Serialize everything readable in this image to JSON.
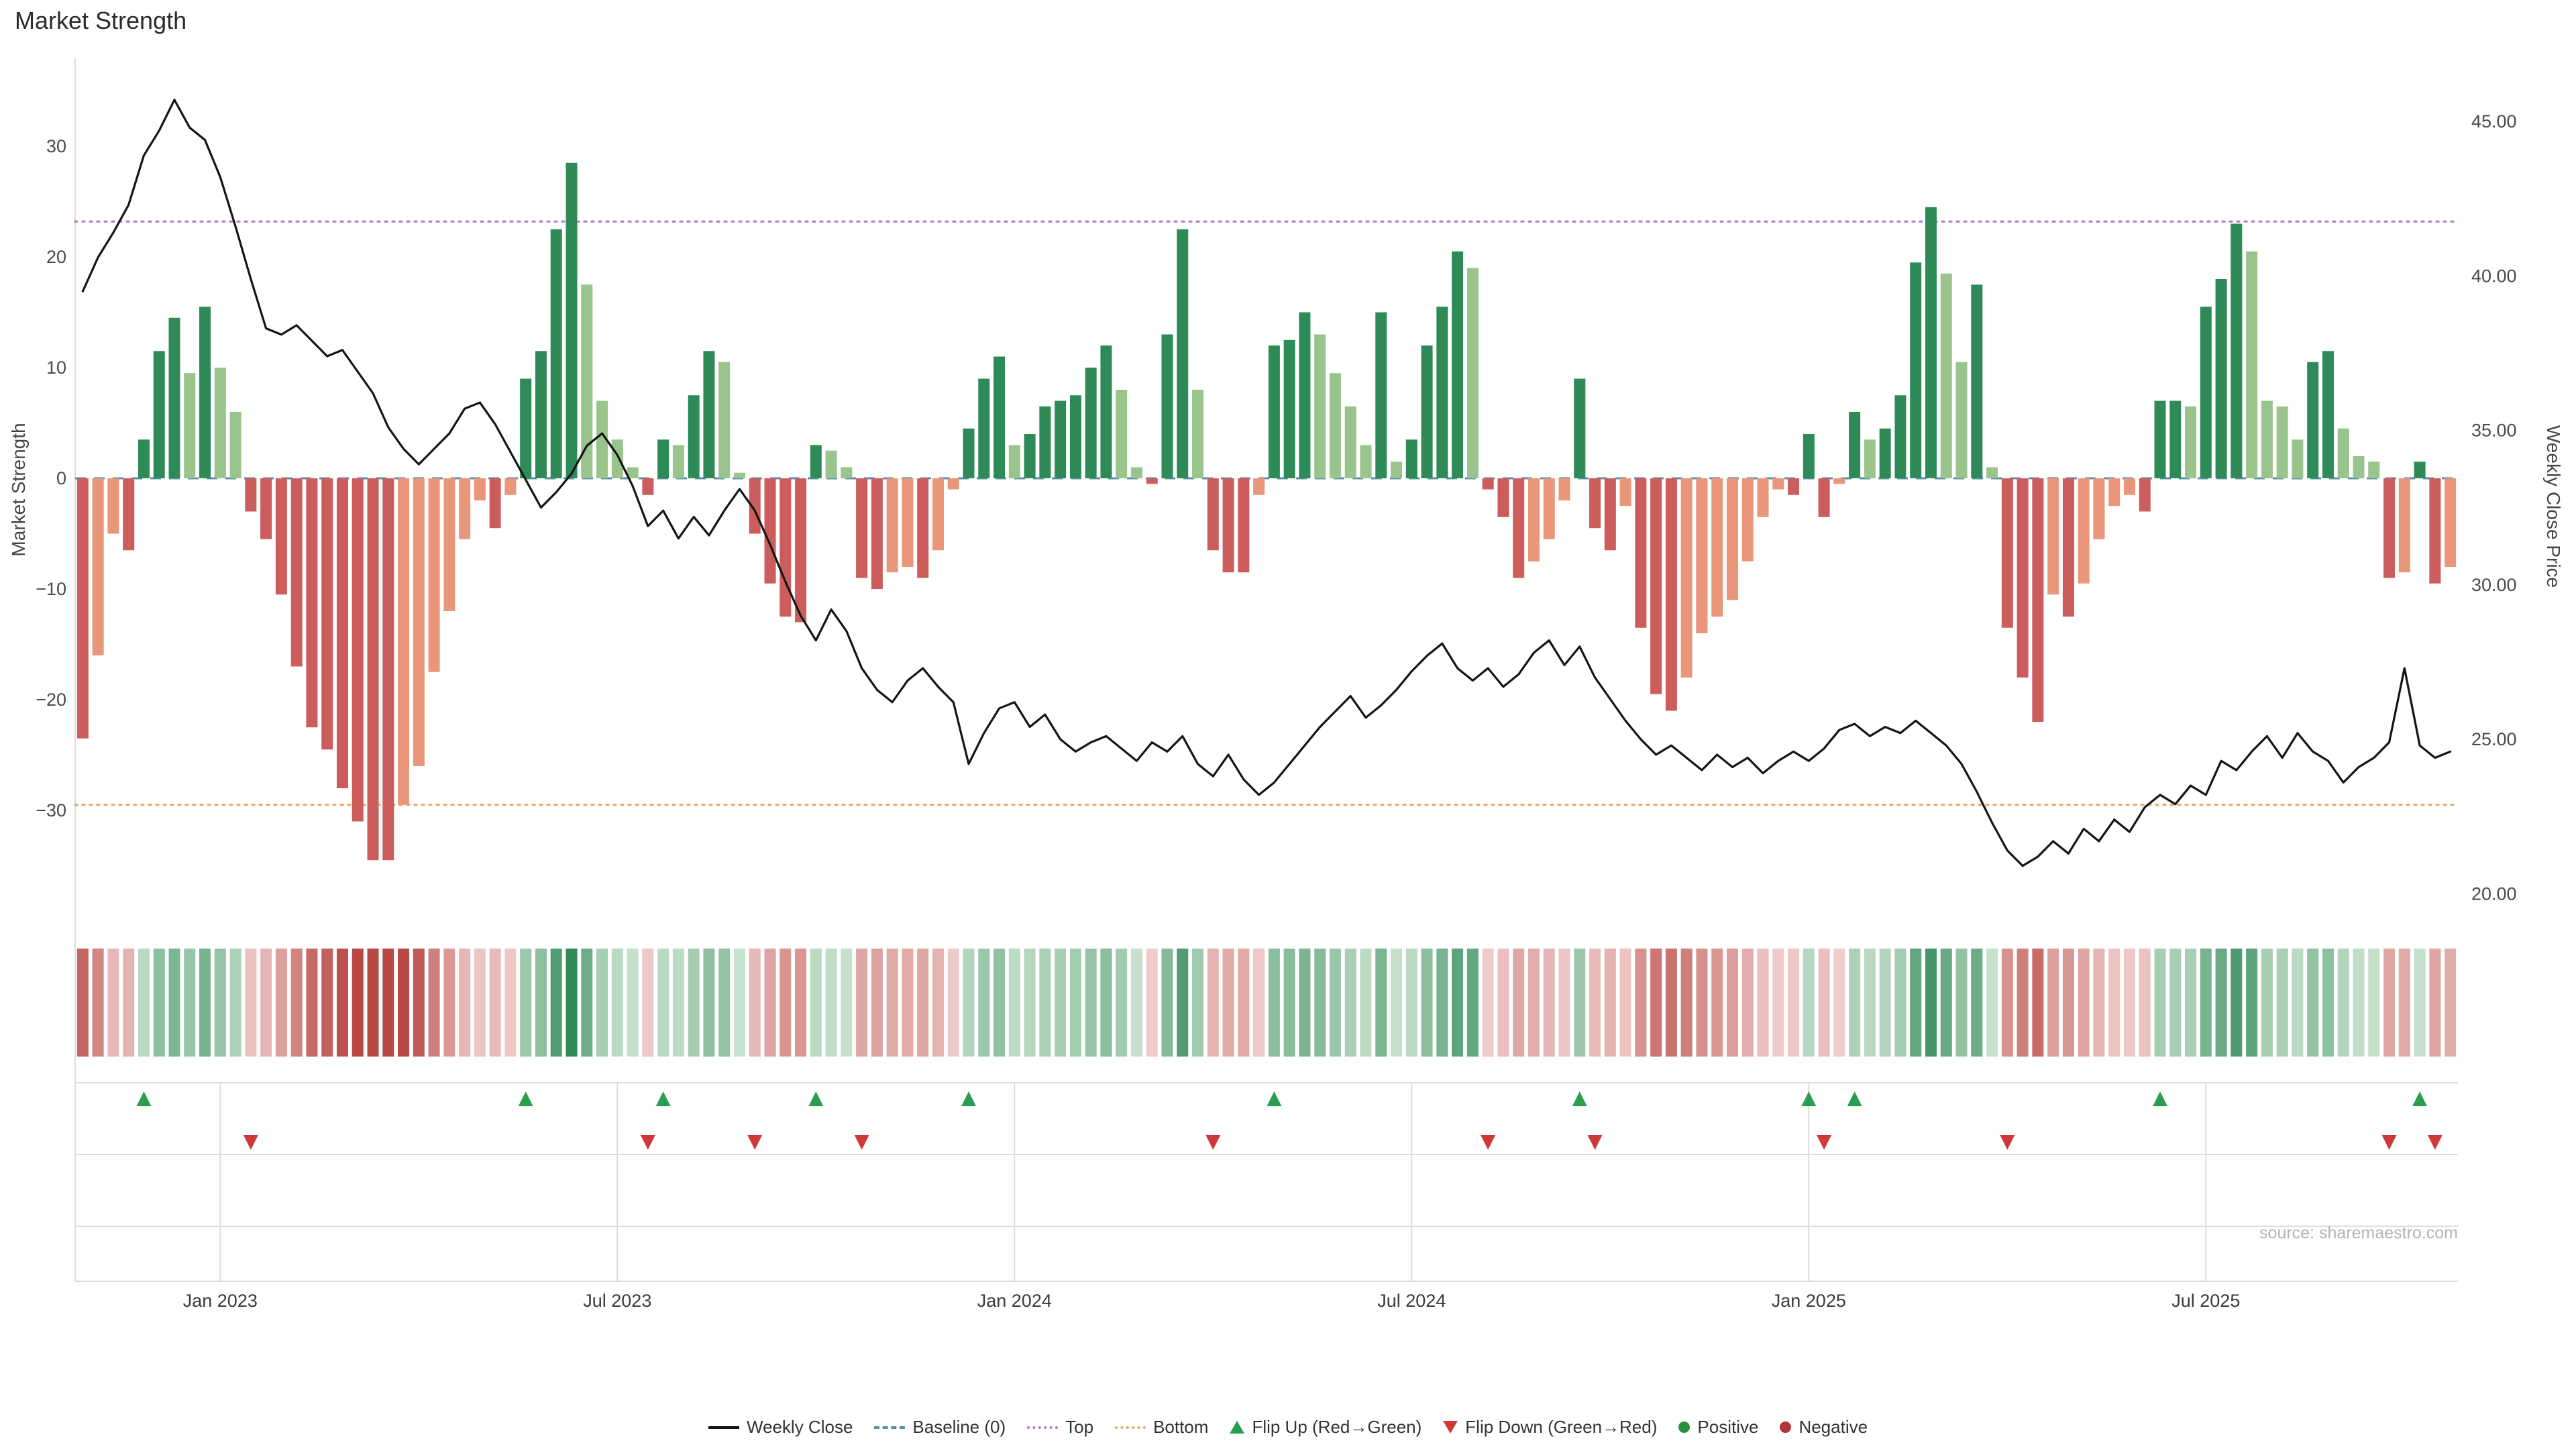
{
  "title": "Market Strength",
  "source": "source: sharemaestro.com",
  "colors": {
    "positive_dark": "#2e8b57",
    "positive_light": "#99c48c",
    "negative_dark": "#cd5c5c",
    "negative_light": "#e9967a",
    "close_line": "#141414",
    "baseline": "#5b8fa8",
    "top": "#b07cc6",
    "bottom": "#f4a460",
    "flip_up": "#2a9d4e",
    "flip_down": "#cf3838",
    "positive_dot": "#2f8f3f",
    "negative_dot": "#b23434"
  },
  "legend": {
    "weekly_close": "Weekly Close",
    "baseline": "Baseline (0)",
    "top": "Top",
    "bottom": "Bottom",
    "flip_up": "Flip Up (Red→Green)",
    "flip_down": "Flip Down (Green→Red)",
    "positive": "Positive",
    "negative": "Negative"
  },
  "chart_data": {
    "type": "combo",
    "title": "Market Strength",
    "ylabel_left": "Market Strength",
    "ylabel_right": "Weekly Close Price",
    "ylim_left": [
      -38,
      36
    ],
    "ylim_right": [
      20,
      45
    ],
    "left_ticks": [
      {
        "v": 30,
        "label": "30"
      },
      {
        "v": 20,
        "label": "20"
      },
      {
        "v": 10,
        "label": "10"
      },
      {
        "v": 0,
        "label": "0"
      },
      {
        "v": -10,
        "label": "−10"
      },
      {
        "v": -20,
        "label": "−20"
      },
      {
        "v": -30,
        "label": "−30"
      }
    ],
    "right_ticks": [
      {
        "v": 45,
        "label": "45.00"
      },
      {
        "v": 40,
        "label": "40.00"
      },
      {
        "v": 35,
        "label": "35.00"
      },
      {
        "v": 30,
        "label": "30.00"
      },
      {
        "v": 25,
        "label": "25.00"
      },
      {
        "v": 20,
        "label": "20.00"
      }
    ],
    "x_ticks": [
      {
        "i": 9,
        "label": "Jan 2023"
      },
      {
        "i": 35,
        "label": "Jul 2023"
      },
      {
        "i": 61,
        "label": "Jan 2024"
      },
      {
        "i": 87,
        "label": "Jul 2024"
      },
      {
        "i": 113,
        "label": "Jan 2025"
      },
      {
        "i": 139,
        "label": "Jul 2025"
      }
    ],
    "baseline": 0,
    "top_threshold": 23.2,
    "bottom_threshold": -29.5,
    "n_weeks": 156,
    "series": [
      {
        "name": "Market Strength",
        "type": "bar",
        "axis": "left",
        "values": [
          -23.5,
          -16,
          -5,
          -6.5,
          3.5,
          11.5,
          14.5,
          9.5,
          15.5,
          10,
          6,
          -3,
          -5.5,
          -10.5,
          -17,
          -22.5,
          -24.5,
          -28,
          -31,
          -34.5,
          -34.5,
          -29.5,
          -26,
          -17.5,
          -12,
          -5.5,
          -2,
          -4.5,
          -1.5,
          9,
          11.5,
          22.5,
          28.5,
          17.5,
          7,
          3.5,
          1,
          -1.5,
          3.5,
          3,
          7.5,
          11.5,
          10.5,
          0.5,
          -5,
          -9.5,
          -12.5,
          -13,
          3,
          2.5,
          1,
          -9,
          -10,
          -8.5,
          -8,
          -9,
          -6.5,
          -1,
          4.5,
          9,
          11,
          3,
          4,
          6.5,
          7,
          7.5,
          10,
          12,
          8,
          1,
          -0.5,
          13,
          22.5,
          8,
          -6.5,
          -8.5,
          -8.5,
          -1.5,
          12,
          12.5,
          15,
          13,
          9.5,
          6.5,
          3,
          15,
          1.5,
          3.5,
          12,
          15.5,
          20.5,
          19,
          -1,
          -3.5,
          -9,
          -7.5,
          -5.5,
          -2,
          9,
          -4.5,
          -6.5,
          -2.5,
          -13.5,
          -19.5,
          -21,
          -18,
          -14,
          -12.5,
          -11,
          -7.5,
          -3.5,
          -1,
          -1.5,
          4,
          -3.5,
          -0.5,
          6,
          3.5,
          4.5,
          7.5,
          19.5,
          24.5,
          18.5,
          10.5,
          17.5,
          1,
          -13.5,
          -18,
          -22,
          -10.5,
          -12.5,
          -9.5,
          -5.5,
          -2.5,
          -1.5,
          -3,
          7,
          7,
          6.5,
          15.5,
          18,
          23,
          20.5,
          7,
          6.5,
          3.5,
          10.5,
          11.5,
          4.5,
          2,
          1.5,
          -9,
          -8.5,
          1.5,
          -9.5,
          -8
        ]
      },
      {
        "name": "Weekly Close",
        "type": "line",
        "axis": "right",
        "values": [
          39.5,
          40.6,
          41.4,
          42.3,
          43.9,
          44.7,
          45.7,
          44.8,
          44.4,
          43.2,
          41.6,
          39.9,
          38.3,
          38.1,
          38.4,
          37.9,
          37.4,
          37.6,
          36.9,
          36.2,
          35.1,
          34.4,
          33.9,
          34.4,
          34.9,
          35.7,
          35.9,
          35.2,
          34.3,
          33.4,
          32.5,
          33.0,
          33.6,
          34.5,
          34.9,
          34.2,
          33.2,
          31.9,
          32.4,
          31.5,
          32.2,
          31.6,
          32.4,
          33.1,
          32.4,
          31.3,
          30.1,
          29.0,
          28.2,
          29.2,
          28.5,
          27.3,
          26.6,
          26.2,
          26.9,
          27.3,
          26.7,
          26.2,
          24.2,
          25.2,
          26.0,
          26.2,
          25.4,
          25.8,
          25.0,
          24.6,
          24.9,
          25.1,
          24.7,
          24.3,
          24.9,
          24.6,
          25.1,
          24.2,
          23.8,
          24.5,
          23.7,
          23.2,
          23.6,
          24.2,
          24.8,
          25.4,
          25.9,
          26.4,
          25.7,
          26.1,
          26.6,
          27.2,
          27.7,
          28.1,
          27.3,
          26.9,
          27.3,
          26.7,
          27.1,
          27.8,
          28.2,
          27.4,
          28.0,
          27.0,
          26.3,
          25.6,
          25.0,
          24.5,
          24.8,
          24.4,
          24.0,
          24.5,
          24.1,
          24.4,
          23.9,
          24.3,
          24.6,
          24.3,
          24.7,
          25.3,
          25.5,
          25.1,
          25.4,
          25.2,
          25.6,
          25.2,
          24.8,
          24.2,
          23.3,
          22.3,
          21.4,
          20.9,
          21.2,
          21.7,
          21.3,
          22.1,
          21.7,
          22.4,
          22.0,
          22.8,
          23.2,
          22.9,
          23.5,
          23.2,
          24.3,
          24.0,
          24.6,
          25.1,
          24.4,
          25.2,
          24.6,
          24.3,
          23.6,
          24.1,
          24.4,
          24.9,
          27.3,
          24.8,
          24.4,
          24.6
        ]
      }
    ],
    "flip_up_idx": [
      4,
      29,
      38,
      48,
      58,
      78,
      98,
      113,
      116,
      136,
      153
    ],
    "flip_down_idx": [
      11,
      37,
      44,
      51,
      74,
      92,
      99,
      114,
      126,
      151,
      154
    ],
    "heatmap_note": "color strip encodes weekly Market Strength value (red negative to green positive)"
  }
}
